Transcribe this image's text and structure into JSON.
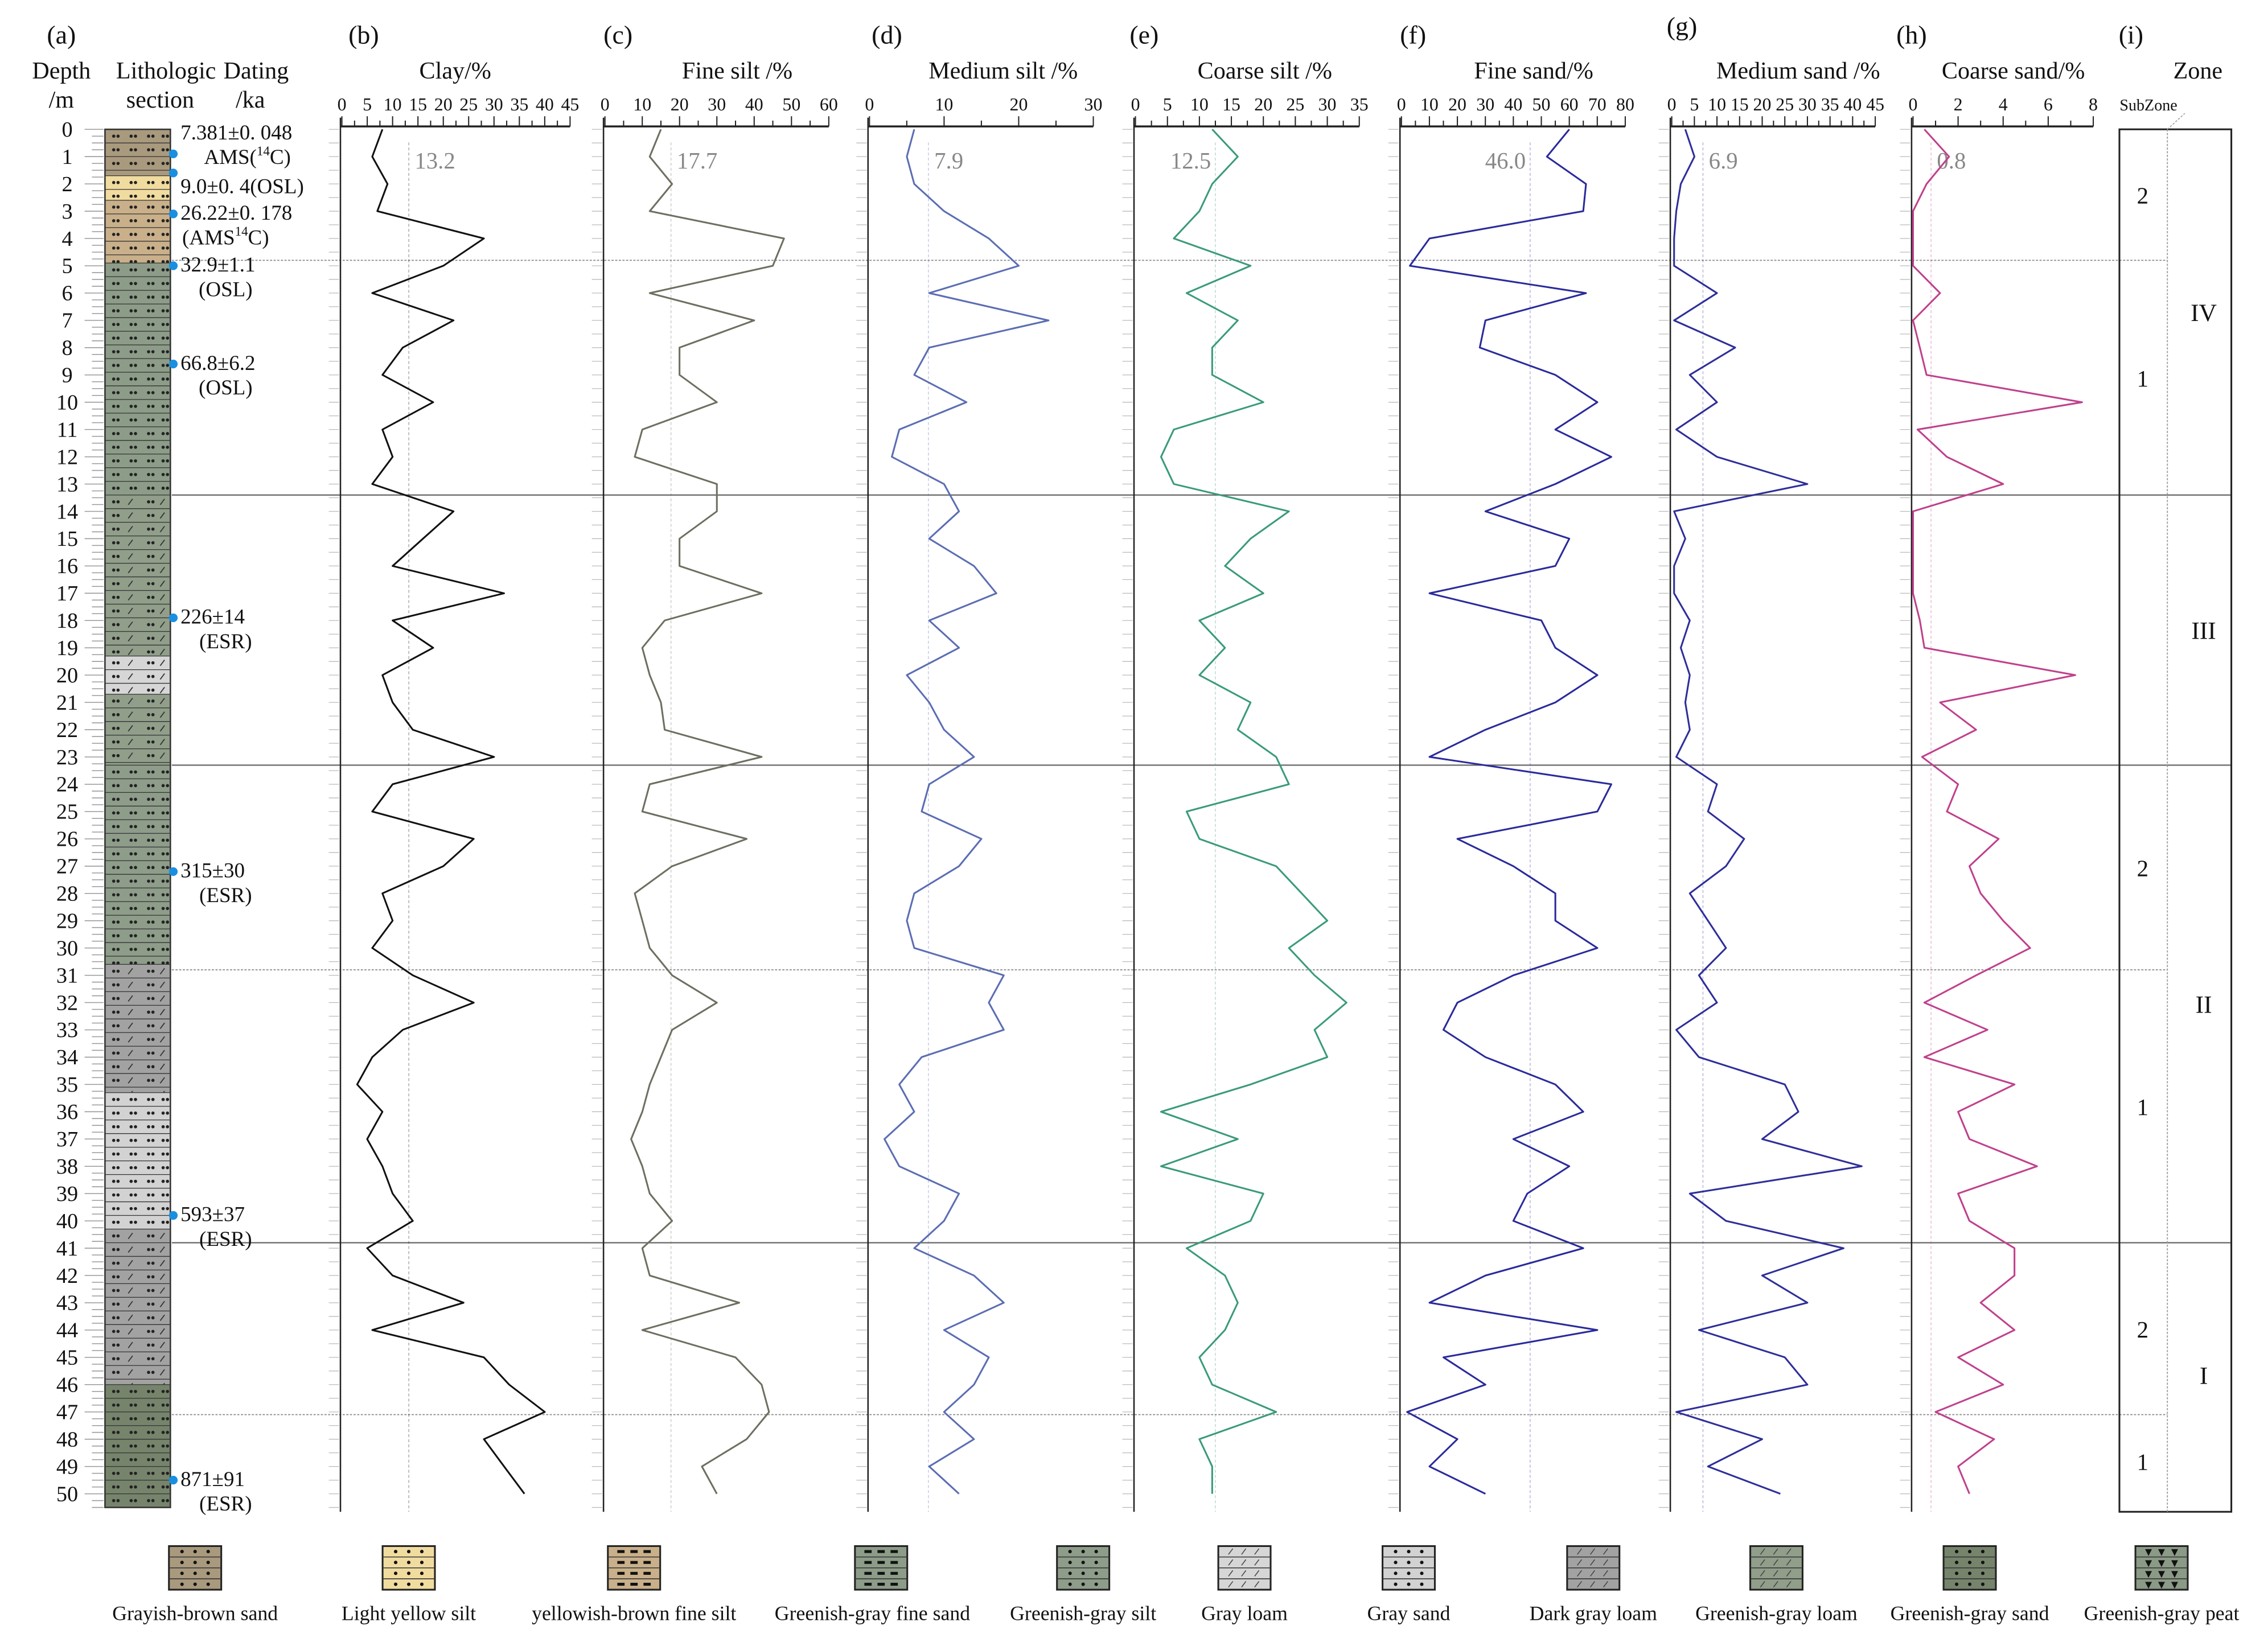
{
  "header": {
    "letter_a": "(a)",
    "depth": "Depth",
    "depth_unit": "/m",
    "litho": "Lithologic",
    "litho_sub": "section",
    "dating": "Dating",
    "dating_unit": "/ka",
    "letter_i": "(i)",
    "zone": "Zone",
    "subzone": "SubZone"
  },
  "chart_data": {
    "type": "line",
    "orientation": "depth-profile (depth on vertical axis, increasing downward)",
    "depth_range": [
      0,
      50.5
    ],
    "depths": [
      0,
      1,
      2,
      3,
      4,
      5,
      6,
      7,
      8,
      9,
      10,
      11,
      12,
      13,
      14,
      15,
      16,
      17,
      18,
      19,
      20,
      21,
      22,
      23,
      24,
      25,
      26,
      27,
      28,
      29,
      30,
      31,
      32,
      33,
      34,
      35,
      36,
      37,
      38,
      39,
      40,
      41,
      42,
      43,
      44,
      45,
      46,
      47,
      48,
      49,
      50
    ],
    "panels": [
      {
        "letter": "(b)",
        "title": "Clay/%",
        "xlim": [
          0,
          45
        ],
        "major": 5,
        "minor": 2.5,
        "ticks": [
          "0",
          "5",
          "10",
          "15",
          "20",
          "25",
          "30",
          "35",
          "40",
          "45"
        ],
        "mean": "13.2",
        "color": "#111111",
        "values": [
          8,
          6,
          9,
          7,
          28,
          20,
          6,
          22,
          12,
          8,
          18,
          8,
          10,
          6,
          22,
          16,
          10,
          32,
          10,
          18,
          8,
          10,
          14,
          30,
          10,
          6,
          26,
          20,
          8,
          10,
          6,
          14,
          26,
          12,
          6,
          3,
          8,
          5,
          8,
          10,
          14,
          5,
          10,
          24,
          6,
          28,
          33,
          40,
          28,
          32,
          36
        ]
      },
      {
        "letter": "(c)",
        "title": "Fine  silt /%",
        "xlim": [
          0,
          60
        ],
        "major": 10,
        "minor": 5,
        "ticks": [
          "0",
          "10",
          "20",
          "30",
          "40",
          "50",
          "60"
        ],
        "mean": "17.7",
        "color": "#6f6e60",
        "values": [
          15,
          12,
          18,
          12,
          48,
          45,
          12,
          40,
          20,
          20,
          30,
          10,
          8,
          30,
          30,
          20,
          20,
          42,
          16,
          10,
          12,
          15,
          16,
          42,
          12,
          10,
          38,
          18,
          8,
          10,
          12,
          18,
          30,
          18,
          15,
          12,
          10,
          7,
          10,
          12,
          18,
          10,
          12,
          36,
          10,
          35,
          42,
          44,
          38,
          26,
          30
        ]
      },
      {
        "letter": "(d)",
        "title": "Medium silt /%",
        "xlim": [
          0,
          30
        ],
        "major": 10,
        "minor": 5,
        "ticks": [
          "0",
          "10",
          "20",
          "30"
        ],
        "mean": "7.9",
        "color": "#5b6db3",
        "values": [
          6,
          5,
          6,
          10,
          16,
          20,
          8,
          24,
          8,
          6,
          13,
          4,
          3,
          10,
          12,
          8,
          14,
          17,
          8,
          12,
          5,
          8,
          10,
          14,
          8,
          7,
          15,
          12,
          6,
          5,
          6,
          18,
          16,
          18,
          7,
          4,
          6,
          2,
          4,
          12,
          10,
          6,
          14,
          18,
          10,
          16,
          14,
          10,
          14,
          8,
          12
        ]
      },
      {
        "letter": "(e)",
        "title": "Coarse silt /%",
        "xlim": [
          0,
          35
        ],
        "major": 5,
        "minor": 2.5,
        "ticks": [
          "0",
          "5",
          "10",
          "15",
          "20",
          "25",
          "30",
          "35"
        ],
        "mean": "12.5",
        "color": "#3a9a7c",
        "values": [
          12,
          16,
          12,
          10,
          6,
          18,
          8,
          16,
          12,
          12,
          20,
          6,
          4,
          6,
          24,
          18,
          14,
          20,
          10,
          14,
          10,
          18,
          16,
          22,
          24,
          8,
          10,
          22,
          26,
          30,
          24,
          28,
          33,
          28,
          30,
          18,
          4,
          16,
          4,
          20,
          18,
          8,
          14,
          16,
          14,
          10,
          12,
          22,
          10,
          12,
          12
        ]
      },
      {
        "letter": "(f)",
        "title": "Fine sand/%",
        "xlim": [
          0,
          80
        ],
        "major": 10,
        "minor": 5,
        "ticks": [
          "0",
          "10",
          "20",
          "30",
          "40",
          "50",
          "60",
          "70",
          "80"
        ],
        "mean": "46.0",
        "color": "#2a2a9c",
        "values": [
          60,
          52,
          66,
          65,
          10,
          3,
          66,
          30,
          28,
          55,
          70,
          55,
          75,
          55,
          30,
          60,
          55,
          10,
          50,
          55,
          70,
          55,
          30,
          10,
          75,
          70,
          20,
          40,
          55,
          55,
          70,
          40,
          20,
          15,
          30,
          55,
          65,
          40,
          60,
          45,
          40,
          65,
          30,
          10,
          70,
          15,
          30,
          2,
          20,
          10,
          30
        ]
      },
      {
        "letter": "(g)",
        "title": "Medium sand /%",
        "xlim": [
          0,
          45
        ],
        "major": 5,
        "minor": 2.5,
        "ticks": [
          "0",
          "5",
          "10",
          "15",
          "20",
          "25",
          "30",
          "35",
          "40",
          "45"
        ],
        "mean": "6.9",
        "color": "#2e2e9a",
        "values": [
          3,
          5,
          2,
          1,
          0.5,
          0.5,
          10,
          0.5,
          14,
          4,
          10,
          1,
          10,
          30,
          0.5,
          3,
          0.5,
          0.5,
          4,
          2,
          4,
          3,
          4,
          1,
          10,
          8,
          16,
          12,
          4,
          8,
          12,
          6,
          10,
          1,
          6,
          25,
          28,
          20,
          42,
          4,
          12,
          38,
          20,
          30,
          6,
          25,
          30,
          1,
          20,
          8,
          24
        ]
      },
      {
        "letter": "(h)",
        "title": "Coarse sand/%",
        "xlim": [
          0,
          8
        ],
        "major": 2,
        "minor": 1,
        "ticks": [
          "0",
          "2",
          "4",
          "6",
          "8"
        ],
        "mean": "0.8",
        "color": "#c0408c",
        "values": [
          0.5,
          1.6,
          0.6,
          0,
          0,
          0,
          1.2,
          0,
          0.3,
          0.6,
          7.5,
          0.2,
          1.5,
          4,
          0,
          0,
          0,
          0,
          0.3,
          0.5,
          7.2,
          1.2,
          2.8,
          0.4,
          2,
          1.5,
          3.8,
          2.5,
          3,
          4,
          5.2,
          2.8,
          0.5,
          3.3,
          0.5,
          4.5,
          2,
          2.5,
          5.5,
          2,
          2.5,
          4.5,
          4.5,
          3,
          4.5,
          2,
          4,
          1,
          3.6,
          2,
          2.5
        ]
      }
    ],
    "zones": [
      {
        "name": "IV",
        "top": 0,
        "bottom": 13.4,
        "subzones": [
          {
            "name": "2",
            "top": 0,
            "bottom": 4.8
          },
          {
            "name": "1",
            "top": 4.8,
            "bottom": 13.4
          }
        ]
      },
      {
        "name": "III",
        "top": 13.4,
        "bottom": 23.3,
        "subzones": []
      },
      {
        "name": "II",
        "top": 23.3,
        "bottom": 40.8,
        "subzones": [
          {
            "name": "2",
            "top": 23.3,
            "bottom": 30.8
          },
          {
            "name": "1",
            "top": 30.8,
            "bottom": 40.8
          }
        ]
      },
      {
        "name": "I",
        "top": 40.8,
        "bottom": 50.5,
        "subzones": [
          {
            "name": "2",
            "top": 40.8,
            "bottom": 47.1
          },
          {
            "name": "1",
            "top": 47.1,
            "bottom": 50.5
          }
        ]
      }
    ],
    "dates": [
      {
        "depth": 0.9,
        "line1": "7.381±0. 048",
        "pre": "AMS(",
        "sup": "14",
        "post": "C)"
      },
      {
        "depth": 1.6,
        "line1": "9.0±0. 4(OSL)"
      },
      {
        "depth": 3.1,
        "line1": "26.22±0. 178",
        "pre": "(AMS",
        "sup": "14",
        "post": "C)"
      },
      {
        "depth": 5.0,
        "line1": "32.9±1.1",
        "pre": "(OSL)"
      },
      {
        "depth": 8.6,
        "line1": "66.8±6.2",
        "pre": "(OSL)"
      },
      {
        "depth": 17.9,
        "line1": "226±14",
        "pre": "(ESR)"
      },
      {
        "depth": 27.2,
        "line1": "315±30",
        "pre": "(ESR)"
      },
      {
        "depth": 39.8,
        "line1": "593±37",
        "pre": "(ESR)"
      },
      {
        "depth": 49.5,
        "line1": "871±91",
        "pre": "(ESR)"
      }
    ],
    "lithology": [
      {
        "top": 0,
        "bottom": 1.7,
        "type": 0
      },
      {
        "top": 1.7,
        "bottom": 2.6,
        "type": 1
      },
      {
        "top": 2.6,
        "bottom": 4.9,
        "type": 2
      },
      {
        "top": 4.9,
        "bottom": 13.4,
        "type": 3
      },
      {
        "top": 13.4,
        "bottom": 19.3,
        "type": 8
      },
      {
        "top": 19.3,
        "bottom": 20.7,
        "type": 5
      },
      {
        "top": 20.7,
        "bottom": 23.3,
        "type": 8
      },
      {
        "top": 23.3,
        "bottom": 30.6,
        "type": 4
      },
      {
        "top": 30.6,
        "bottom": 35.3,
        "type": 7
      },
      {
        "top": 35.3,
        "bottom": 40.3,
        "type": 6
      },
      {
        "top": 40.3,
        "bottom": 46.0,
        "type": 7
      },
      {
        "top": 46.0,
        "bottom": 50.5,
        "type": 9
      }
    ],
    "legend": [
      {
        "label": "Grayish-brown  sand",
        "color": "#a99a7e",
        "mark": "dot"
      },
      {
        "label": "Light yellow silt",
        "color": "#f1dca0",
        "mark": "dot"
      },
      {
        "label": "yellowish-brown fine silt",
        "color": "#c9b08a",
        "mark": "dash"
      },
      {
        "label": "Greenish-gray fine sand",
        "color": "#8c9c88",
        "mark": "dash"
      },
      {
        "label": "Greenish-gray silt",
        "color": "#8e9c8a",
        "mark": "dot"
      },
      {
        "label": "Gray loam",
        "color": "#d6d6d6",
        "mark": "slash"
      },
      {
        "label": "Gray sand",
        "color": "#d2d2d2",
        "mark": "dot"
      },
      {
        "label": "Dark gray loam",
        "color": "#a2a2a2",
        "mark": "slash"
      },
      {
        "label": "Greenish-gray loam",
        "color": "#909e8a",
        "mark": "slash"
      },
      {
        "label": "Greenish-gray sand",
        "color": "#76846c",
        "mark": "dot"
      },
      {
        "label": "Greenish-gray peat",
        "color": "#8a9a86",
        "mark": "peat"
      }
    ],
    "date_marker_color": "#1a8fe0"
  }
}
